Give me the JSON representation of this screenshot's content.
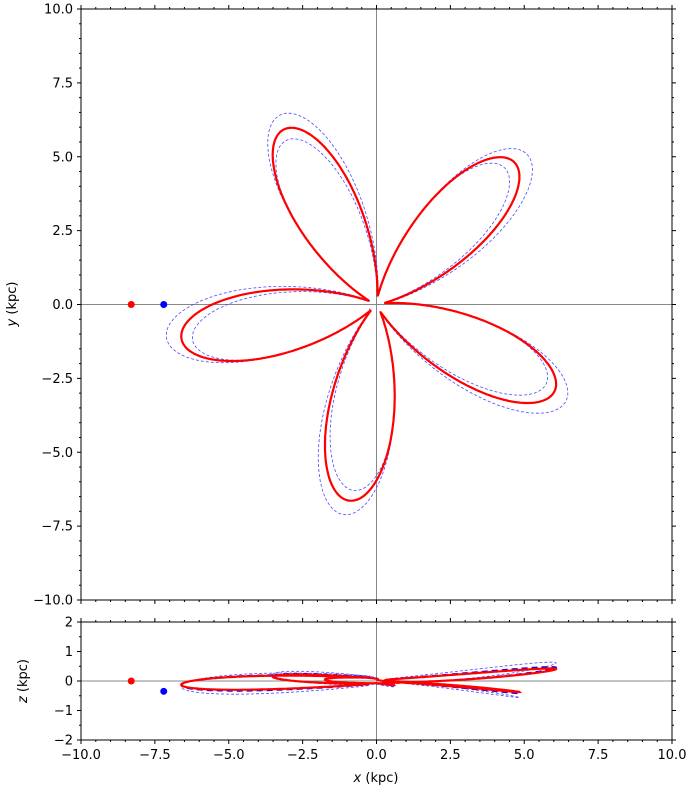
{
  "chart_data": [
    {
      "panel": "top",
      "type": "line",
      "xlim": [
        -10,
        10
      ],
      "ylim": [
        -10,
        10
      ],
      "xlabel": "",
      "ylabel": "y (kpc)",
      "ylabel_var": "y",
      "ylabel_unit": " (kpc)",
      "x_ticks": [
        -10,
        -7.5,
        -5,
        -2.5,
        0,
        2.5,
        5,
        7.5,
        10
      ],
      "y_ticks": [
        -10,
        -7.5,
        -5,
        -2.5,
        0,
        2.5,
        5,
        7.5,
        10
      ],
      "y_tick_labels": [
        "−10.0",
        "−7.5",
        "−5.0",
        "−2.5",
        "0.0",
        "2.5",
        "5.0",
        "7.5",
        "10.0"
      ],
      "grid": false,
      "reference_lines": {
        "x": 0,
        "y": 0
      },
      "markers": [
        {
          "x": -8.3,
          "y": 0.0,
          "color": "#ff0000"
        },
        {
          "x": -7.2,
          "y": 0.0,
          "color": "#0000ff"
        }
      ],
      "series": [
        {
          "style": "solid",
          "color": "#ff0000",
          "rosette": {
            "a": 3.3,
            "b": 0.2,
            "c": 0.97,
            "rotation_deg": 82,
            "petals": 5,
            "start_x": -7.2,
            "end_x": 6.5,
            "end_y": 2.3
          }
        },
        {
          "style": "dashed",
          "color": "#0000ff",
          "rosette": {
            "a": 3.3,
            "b": 0.2,
            "c": 0.97,
            "rotation_deg": 82,
            "petals": 5
          }
        },
        {
          "style": "dashed-thin",
          "color": "#4a4aff",
          "rosette": {
            "a": 3.5,
            "b": 0.3,
            "c": 0.97,
            "rotation_deg": 81,
            "petals": 5
          }
        },
        {
          "style": "dashed-thin",
          "color": "#4a4aff",
          "rosette": {
            "a": 3.1,
            "b": 0.2,
            "c": 0.98,
            "rotation_deg": 83,
            "petals": 5
          }
        }
      ]
    },
    {
      "panel": "bottom",
      "type": "line",
      "xlim": [
        -10,
        10
      ],
      "ylim": [
        -2,
        2
      ],
      "xlabel": "x (kpc)",
      "xlabel_var": "x",
      "xlabel_unit": " (kpc)",
      "ylabel": "z (kpc)",
      "ylabel_var": "z",
      "ylabel_unit": " (kpc)",
      "x_ticks": [
        -10,
        -7.5,
        -5,
        -2.5,
        0,
        2.5,
        5,
        7.5,
        10
      ],
      "x_tick_labels": [
        "−10.0",
        "−7.5",
        "−5.0",
        "−2.5",
        "0.0",
        "2.5",
        "5.0",
        "7.5",
        "10.0"
      ],
      "y_ticks": [
        -2,
        -1,
        0,
        1,
        2
      ],
      "y_tick_labels": [
        "−2",
        "−1",
        "0",
        "1",
        "2"
      ],
      "grid": false,
      "reference_lines": {
        "x": 0,
        "y": 0
      },
      "markers": [
        {
          "x": -8.3,
          "y": 0.0,
          "color": "#ff0000"
        },
        {
          "x": -7.2,
          "y": -0.35,
          "color": "#0000ff"
        }
      ],
      "series": [
        {
          "style": "solid",
          "color": "#ff0000",
          "z_amplitude": 0.4
        },
        {
          "style": "dashed",
          "color": "#0000ff",
          "z_amplitude": 0.45
        },
        {
          "style": "dashed-thin",
          "color": "#4a4aff",
          "z_amplitude": 0.6
        }
      ]
    }
  ]
}
